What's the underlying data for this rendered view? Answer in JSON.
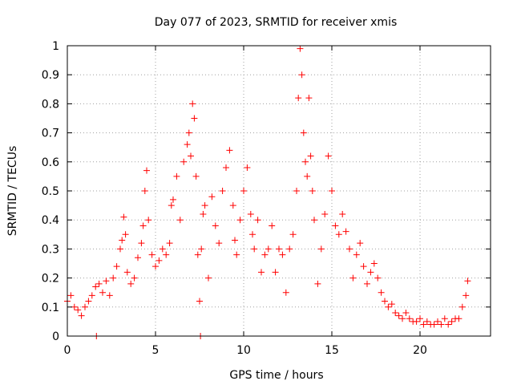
{
  "chart_data": {
    "type": "scatter",
    "title": "Day 077 of 2023, SRMTID for receiver xmis",
    "xlabel": "GPS time / hours",
    "ylabel": "SRMTID / TECUs",
    "xlim": [
      0,
      24
    ],
    "ylim": [
      0,
      1
    ],
    "xticks": [
      0,
      5,
      10,
      15,
      20
    ],
    "xtick_labels": [
      "0",
      "5",
      "10",
      "15",
      "20"
    ],
    "yticks": [
      0,
      0.1,
      0.2,
      0.3,
      0.4,
      0.5,
      0.6,
      0.7,
      0.8,
      0.9,
      1
    ],
    "ytick_labels": [
      "0",
      "0.1",
      "0.2",
      "0.3",
      "0.4",
      "0.5",
      "0.6",
      "0.7",
      "0.8",
      "0.9",
      "1"
    ],
    "grid": true,
    "marker": "plus",
    "series": [
      {
        "name": "SRMTID",
        "color": "#ff0000",
        "x": [
          0.0,
          0.2,
          0.4,
          0.6,
          0.8,
          1.0,
          1.2,
          1.4,
          1.6,
          1.65,
          1.8,
          2.0,
          2.2,
          2.4,
          2.6,
          2.8,
          3.0,
          3.1,
          3.2,
          3.3,
          3.4,
          3.6,
          3.8,
          4.0,
          4.2,
          4.3,
          4.4,
          4.5,
          4.6,
          4.8,
          5.0,
          5.2,
          5.4,
          5.6,
          5.8,
          5.9,
          6.0,
          6.2,
          6.4,
          6.6,
          6.8,
          6.9,
          7.0,
          7.1,
          7.2,
          7.3,
          7.4,
          7.5,
          7.55,
          7.6,
          7.7,
          7.8,
          8.0,
          8.2,
          8.4,
          8.6,
          8.8,
          9.0,
          9.2,
          9.4,
          9.5,
          9.6,
          9.8,
          10.0,
          10.2,
          10.4,
          10.5,
          10.6,
          10.8,
          11.0,
          11.2,
          11.4,
          11.6,
          11.8,
          12.0,
          12.2,
          12.4,
          12.6,
          12.8,
          13.0,
          13.1,
          13.2,
          13.3,
          13.4,
          13.5,
          13.6,
          13.7,
          13.8,
          13.9,
          14.0,
          14.2,
          14.4,
          14.6,
          14.8,
          15.0,
          15.2,
          15.4,
          15.6,
          15.8,
          16.0,
          16.2,
          16.4,
          16.6,
          16.8,
          17.0,
          17.2,
          17.4,
          17.6,
          17.8,
          18.0,
          18.2,
          18.4,
          18.6,
          18.8,
          19.0,
          19.2,
          19.4,
          19.6,
          19.8,
          20.0,
          20.2,
          20.4,
          20.6,
          20.8,
          21.0,
          21.2,
          21.4,
          21.6,
          21.8,
          22.0,
          22.2,
          22.4,
          22.6,
          22.7
        ],
        "y": [
          0.12,
          0.14,
          0.1,
          0.09,
          0.07,
          0.1,
          0.12,
          0.14,
          0.17,
          0.0,
          0.18,
          0.15,
          0.19,
          0.14,
          0.2,
          0.24,
          0.3,
          0.33,
          0.41,
          0.35,
          0.22,
          0.18,
          0.2,
          0.27,
          0.32,
          0.38,
          0.5,
          0.57,
          0.4,
          0.28,
          0.24,
          0.26,
          0.3,
          0.28,
          0.32,
          0.45,
          0.47,
          0.55,
          0.4,
          0.6,
          0.66,
          0.7,
          0.62,
          0.8,
          0.75,
          0.55,
          0.28,
          0.12,
          0.0,
          0.3,
          0.42,
          0.45,
          0.2,
          0.48,
          0.38,
          0.32,
          0.5,
          0.58,
          0.64,
          0.45,
          0.33,
          0.28,
          0.4,
          0.5,
          0.58,
          0.42,
          0.35,
          0.3,
          0.4,
          0.22,
          0.28,
          0.3,
          0.38,
          0.22,
          0.3,
          0.28,
          0.15,
          0.3,
          0.35,
          0.5,
          0.82,
          0.99,
          0.9,
          0.7,
          0.6,
          0.55,
          0.82,
          0.62,
          0.5,
          0.4,
          0.18,
          0.3,
          0.42,
          0.62,
          0.5,
          0.38,
          0.35,
          0.42,
          0.36,
          0.3,
          0.2,
          0.28,
          0.32,
          0.24,
          0.18,
          0.22,
          0.25,
          0.2,
          0.15,
          0.12,
          0.1,
          0.11,
          0.08,
          0.07,
          0.06,
          0.08,
          0.06,
          0.05,
          0.05,
          0.06,
          0.04,
          0.05,
          0.04,
          0.04,
          0.05,
          0.04,
          0.06,
          0.04,
          0.05,
          0.06,
          0.06,
          0.1,
          0.14,
          0.19
        ]
      }
    ]
  }
}
